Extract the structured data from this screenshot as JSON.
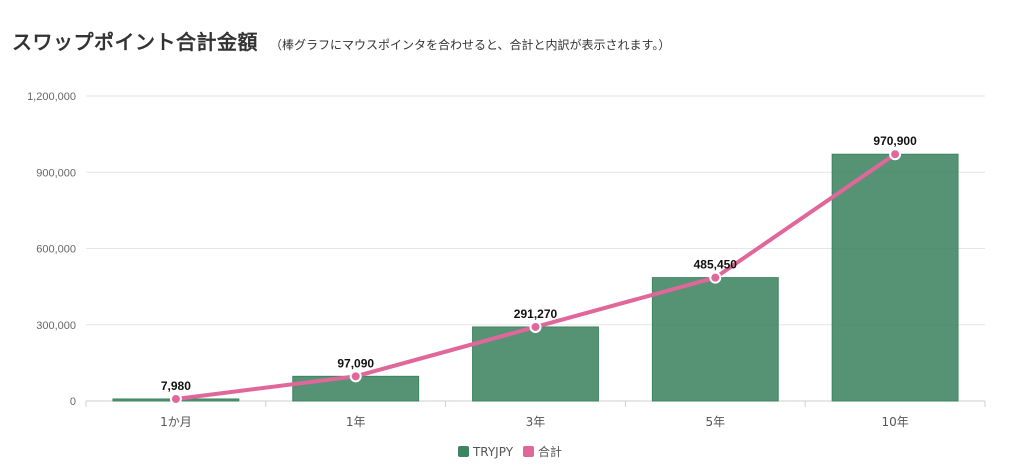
{
  "header": {
    "title": "スワップポイント合計金額",
    "subtitle": "（棒グラフにマウスポインタを合わせると、合計と内訳が表示されます。）"
  },
  "colors": {
    "bar": "#3d8461",
    "line": "#e0679a",
    "grid": "#e5e5e5"
  },
  "chart_data": {
    "type": "bar",
    "categories": [
      "1か月",
      "1年",
      "3年",
      "5年",
      "10年"
    ],
    "series": [
      {
        "name": "TRYJPY",
        "type": "bar",
        "values": [
          7980,
          97090,
          291270,
          485450,
          970900
        ]
      },
      {
        "name": "合計",
        "type": "line",
        "values": [
          7980,
          97090,
          291270,
          485450,
          970900
        ]
      }
    ],
    "data_labels": [
      "7,980",
      "97,090",
      "291,270",
      "485,450",
      "970,900"
    ],
    "yticks": [
      "0",
      "300,000",
      "600,000",
      "900,000",
      "1,200,000"
    ],
    "ylim": [
      0,
      1200000
    ],
    "grid": true,
    "legend_placement": "bottom-center"
  }
}
